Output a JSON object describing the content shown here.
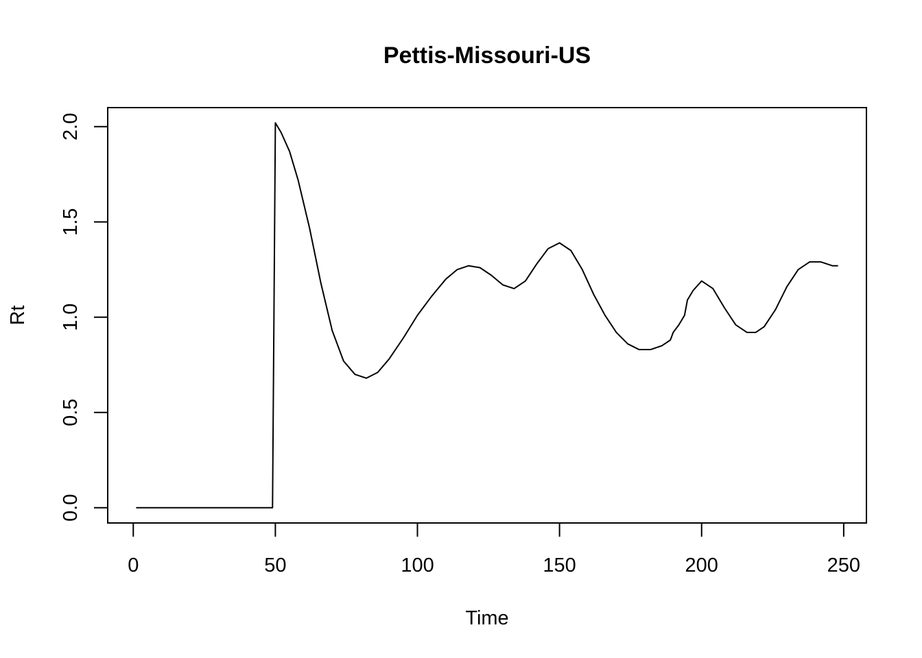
{
  "chart_data": {
    "type": "line",
    "title": "Pettis-Missouri-US",
    "xlabel": "Time",
    "ylabel": "Rt",
    "xlim": [
      -9,
      258
    ],
    "ylim": [
      -0.08,
      2.1
    ],
    "xticks": [
      0,
      50,
      100,
      150,
      200,
      250
    ],
    "yticks": [
      0.0,
      0.5,
      1.0,
      1.5,
      2.0
    ],
    "xtick_labels": [
      "0",
      "50",
      "100",
      "150",
      "200",
      "250"
    ],
    "ytick_labels": [
      "0.0",
      "0.5",
      "1.0",
      "1.5",
      "2.0"
    ],
    "grid": false,
    "legend": "none",
    "line_color": "#000000",
    "series": [
      {
        "x": [
          1,
          10,
          20,
          30,
          40,
          49,
          49.5,
          50,
          52,
          55,
          58,
          62,
          66,
          70,
          74,
          78,
          82,
          86,
          90,
          95,
          100,
          105,
          110,
          114,
          118,
          122,
          126,
          130,
          134,
          138,
          142,
          146,
          150,
          154,
          158,
          162,
          166,
          170,
          174,
          178,
          182,
          186,
          189,
          190,
          192,
          194,
          195,
          197,
          200,
          204,
          208,
          212,
          216,
          219,
          222,
          226,
          230,
          234,
          238,
          242,
          246,
          248
        ],
        "y": [
          0,
          0,
          0,
          0,
          0,
          0,
          1.0,
          2.02,
          1.97,
          1.87,
          1.72,
          1.47,
          1.18,
          0.93,
          0.77,
          0.7,
          0.68,
          0.71,
          0.78,
          0.89,
          1.01,
          1.11,
          1.2,
          1.25,
          1.27,
          1.26,
          1.22,
          1.17,
          1.15,
          1.19,
          1.28,
          1.36,
          1.39,
          1.35,
          1.25,
          1.12,
          1.01,
          0.92,
          0.86,
          0.83,
          0.83,
          0.85,
          0.88,
          0.92,
          0.96,
          1.01,
          1.09,
          1.14,
          1.19,
          1.15,
          1.05,
          0.96,
          0.92,
          0.92,
          0.95,
          1.04,
          1.16,
          1.25,
          1.29,
          1.29,
          1.27,
          1.27
        ]
      }
    ]
  }
}
